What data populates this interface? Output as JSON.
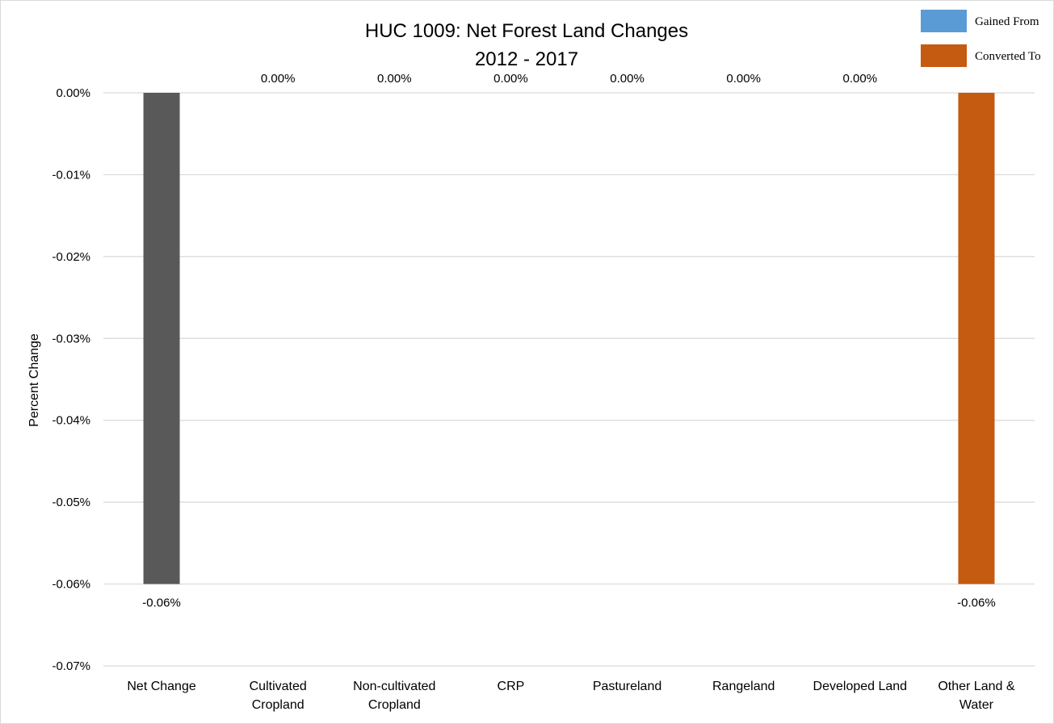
{
  "chart_data": {
    "type": "bar",
    "title": "HUC 1009: Net Forest Land Changes",
    "subtitle": "2012 - 2017",
    "xlabel": "",
    "ylabel": "Percent Change",
    "ylim": [
      -0.07,
      0.0
    ],
    "yticks": [
      "0.00%",
      "-0.01%",
      "-0.02%",
      "-0.03%",
      "-0.04%",
      "-0.05%",
      "-0.06%",
      "-0.07%"
    ],
    "ytick_values": [
      0.0,
      -0.01,
      -0.02,
      -0.03,
      -0.04,
      -0.05,
      -0.06,
      -0.07
    ],
    "grid": true,
    "categories": [
      "Net Change",
      "Cultivated\nCropland",
      "Non-cultivated\nCropland",
      "CRP",
      "Pastureland",
      "Rangeland",
      "Developed Land",
      "Other Land &\nWater"
    ],
    "values": [
      -0.06,
      0.0,
      0.0,
      0.0,
      0.0,
      0.0,
      0.0,
      -0.06
    ],
    "data_labels": [
      "-0.06%",
      "0.00%",
      "0.00%",
      "0.00%",
      "0.00%",
      "0.00%",
      "0.00%",
      "-0.06%"
    ],
    "bar_colors": [
      "#595959",
      "#5b9bd5",
      "#5b9bd5",
      "#5b9bd5",
      "#5b9bd5",
      "#5b9bd5",
      "#5b9bd5",
      "#c55a11"
    ],
    "legend_position": "top-right",
    "legend": [
      {
        "label": "Gained From",
        "color": "#5b9bd5"
      },
      {
        "label": "Converted To",
        "color": "#c55a11"
      }
    ]
  }
}
